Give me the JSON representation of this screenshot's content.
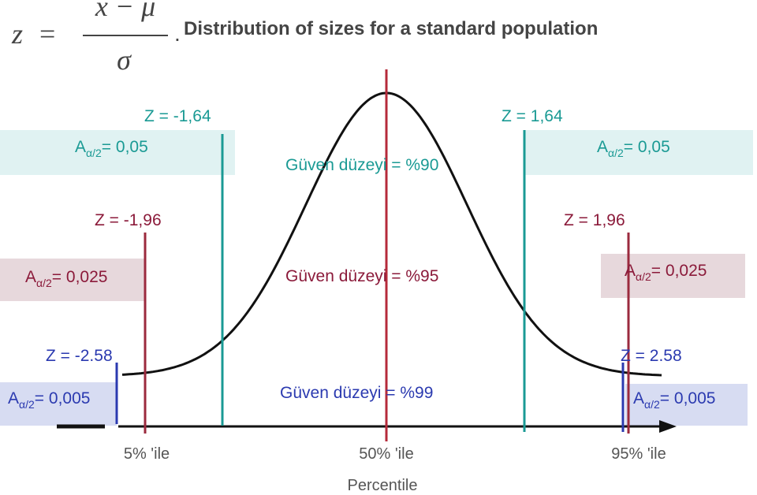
{
  "formula": {
    "lhs": "z",
    "equals": "=",
    "numerator": "x − μ",
    "denominator": "σ",
    "dot": "."
  },
  "title": "Distribution of sizes for a standard population",
  "levels": [
    {
      "confidence": "Güven düzeyi  = %90",
      "left": {
        "z": "Z = -1,64",
        "a_symbol": "A",
        "a_subscript": "α/2",
        "a_value": "= 0,05"
      },
      "right": {
        "z": "Z = 1,64",
        "a_symbol": "A",
        "a_subscript": "α/2",
        "a_value": "= 0,05"
      }
    },
    {
      "confidence": "Güven düzeyi = %95",
      "left": {
        "z": "Z = -1,96",
        "a_symbol": "A",
        "a_subscript": "α/2",
        "a_value": "= 0,025"
      },
      "right": {
        "z": "Z = 1,96",
        "a_symbol": "A",
        "a_subscript": "α/2",
        "a_value": "= 0,025"
      }
    },
    {
      "confidence": "Güven düzeyi = %99",
      "left": {
        "z": "Z = -2.58",
        "a_symbol": "A",
        "a_subscript": "α/2",
        "a_value": "= 0,005"
      },
      "right": {
        "z": "Z = 2.58",
        "a_symbol": "A",
        "a_subscript": "α/2",
        "a_value": "= 0,005"
      }
    }
  ],
  "axis": {
    "ticks": [
      "5% 'ile",
      "50% 'ile",
      "95% 'ile"
    ],
    "label": "Percentile"
  }
}
